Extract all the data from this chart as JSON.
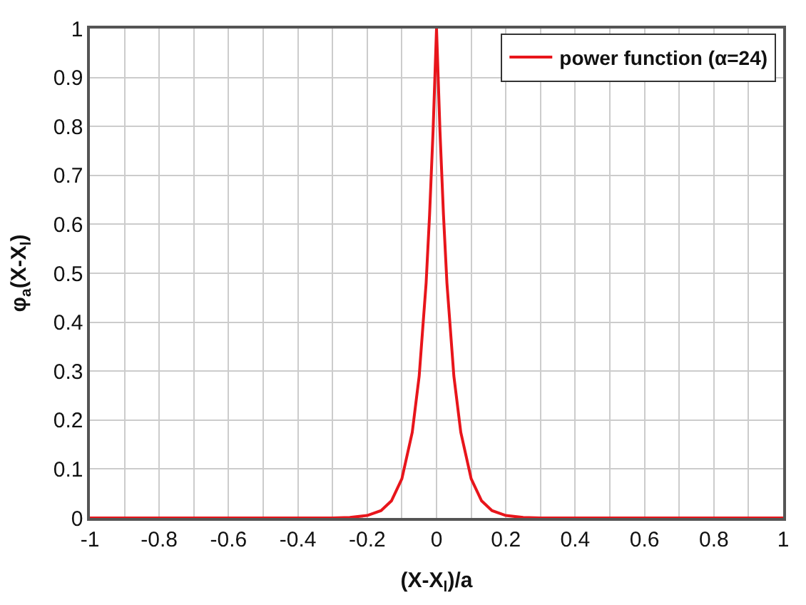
{
  "chart_data": {
    "type": "line",
    "xlabel": "(X-X$_{l}$)/a",
    "ylabel": "φ$_{a}$(X-X$_{l}$)",
    "x": [
      -1,
      -0.3,
      -0.25,
      -0.2,
      -0.16,
      -0.13,
      -0.1,
      -0.07,
      -0.05,
      -0.03,
      -0.02,
      -0.01,
      0,
      0.01,
      0.02,
      0.03,
      0.05,
      0.07,
      0.1,
      0.13,
      0.16,
      0.2,
      0.25,
      0.3,
      1
    ],
    "series": [
      {
        "name": "power function (α=24)",
        "color": "#e8151b",
        "values": [
          0,
          0,
          0.001,
          0.005,
          0.015,
          0.035,
          0.08,
          0.175,
          0.29,
          0.48,
          0.62,
          0.79,
          1,
          0.79,
          0.62,
          0.48,
          0.29,
          0.175,
          0.08,
          0.035,
          0.015,
          0.005,
          0.001,
          0,
          0
        ]
      }
    ],
    "xlim": [
      -1,
      1
    ],
    "xticks": [
      -1,
      -0.8,
      -0.6,
      -0.4,
      -0.2,
      0,
      0.2,
      0.4,
      0.6,
      0.8,
      1
    ],
    "ylim": [
      0,
      1
    ],
    "yticks": [
      0,
      0.1,
      0.2,
      0.3,
      0.4,
      0.5,
      0.6,
      0.7,
      0.8,
      0.9,
      1
    ],
    "grid": true,
    "legend": "top right",
    "marker": "none",
    "line_style": "solid"
  }
}
